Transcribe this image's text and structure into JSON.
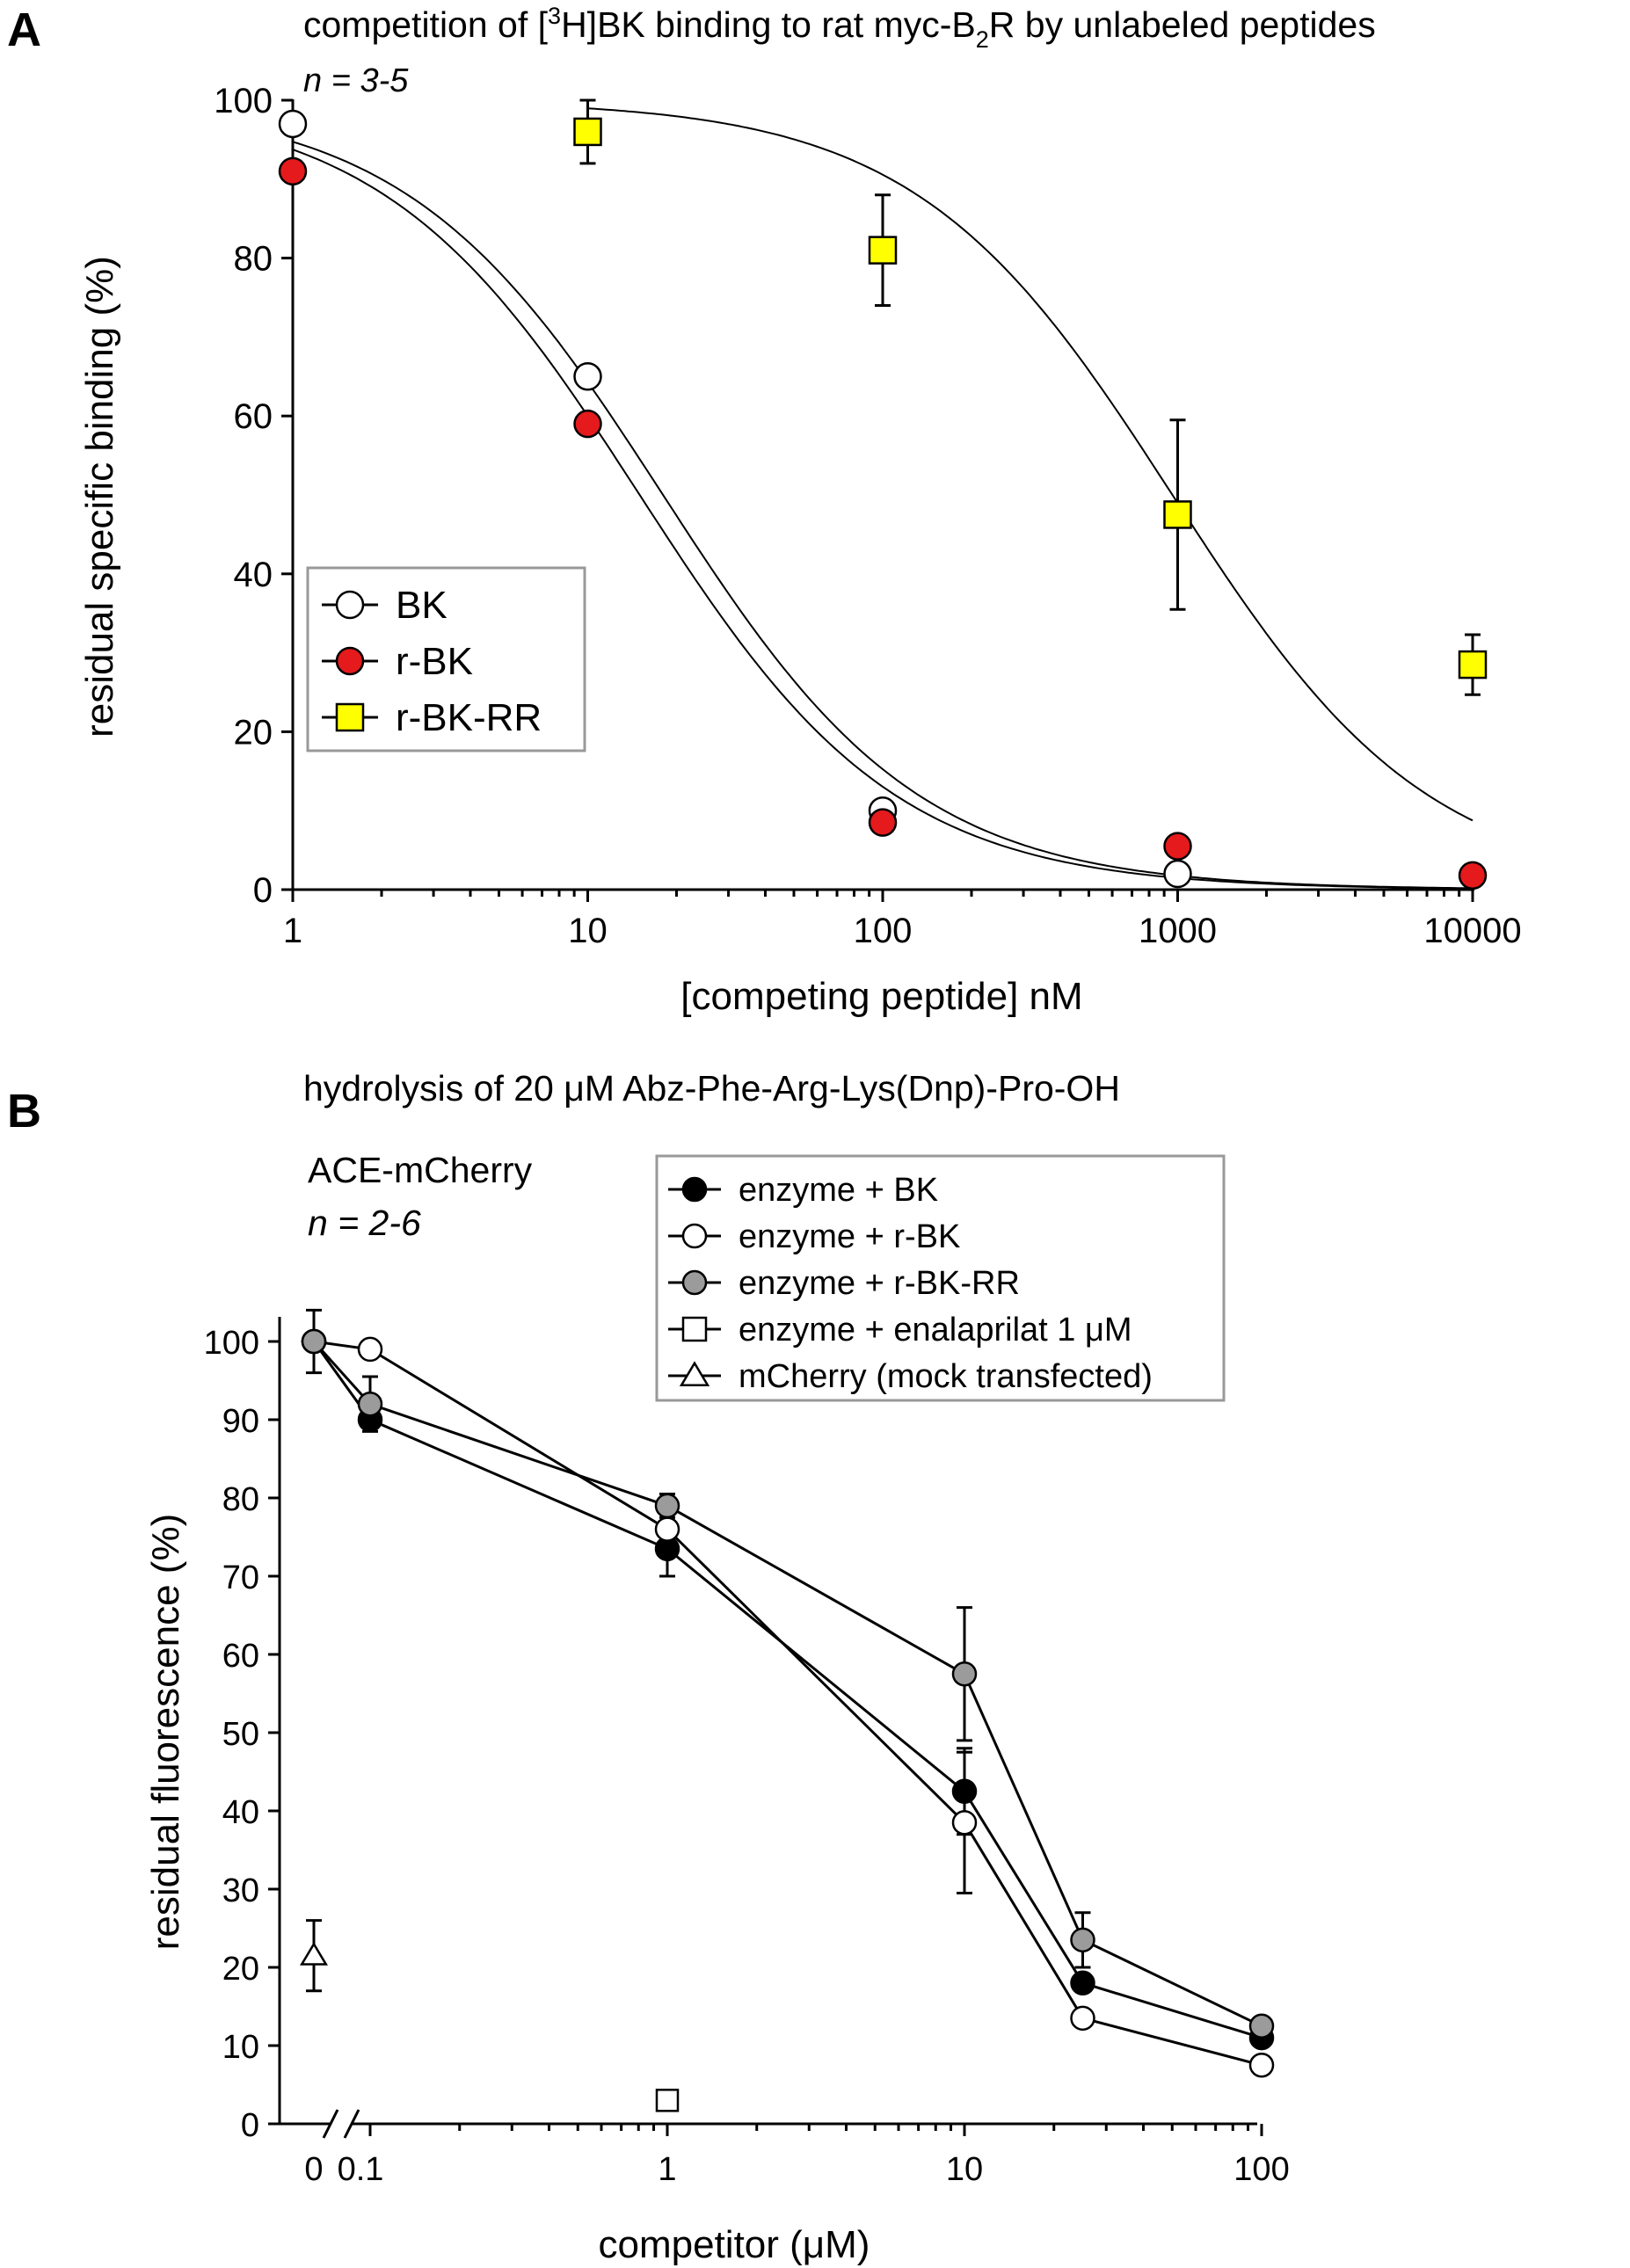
{
  "panel_labels": {
    "a": "A",
    "b": "B"
  },
  "colors": {
    "open": "#ffffff",
    "red": "#e41a1c",
    "yellow": "#ffff00",
    "black": "#000000",
    "gray": "#9b9b9b",
    "legend_border": "#999999"
  },
  "chart_data": [
    {
      "panel": "A",
      "type": "scatter",
      "title_pre": "competition of [",
      "title_sup": "3",
      "title_mid": "H]BK binding to rat myc-B",
      "title_sub": "2",
      "title_post": "R by unlabeled peptides",
      "annotation": "n = 3-5",
      "xlabel": "[competing peptide]  nM",
      "ylabel": "residual specific binding (%)",
      "xscale": "log",
      "xlim": [
        1,
        10000
      ],
      "ylim": [
        0,
        100
      ],
      "xticks": [
        "1",
        "10",
        "100",
        "1000",
        "10000"
      ],
      "yticks": [
        "0",
        "20",
        "40",
        "60",
        "80",
        "100"
      ],
      "legend_position": "mid-left",
      "series": [
        {
          "name": "BK",
          "marker": "circle",
          "fill": "#ffffff",
          "x": [
            1,
            10,
            100,
            1000
          ],
          "y": [
            97,
            65,
            10,
            2
          ],
          "err": [
            0,
            0,
            0,
            0
          ],
          "fit": {
            "top": 100,
            "bottom": 0,
            "ic50": 18,
            "hill": 1
          }
        },
        {
          "name": "r-BK",
          "marker": "circle",
          "fill": "#e41a1c",
          "x": [
            1,
            10,
            100,
            1000,
            10000
          ],
          "y": [
            91,
            59,
            8.5,
            5.5,
            1.8
          ],
          "err": [
            0,
            0,
            0,
            0,
            0
          ],
          "fit": {
            "top": 100,
            "bottom": 0,
            "ic50": 15,
            "hill": 1
          }
        },
        {
          "name": "r-BK-RR",
          "marker": "square",
          "fill": "#ffff00",
          "x": [
            10,
            100,
            1000,
            10000
          ],
          "y": [
            96,
            81,
            47.5,
            28.5
          ],
          "err": [
            4,
            7,
            12,
            3.8
          ],
          "fit": {
            "top": 100,
            "bottom": 0,
            "ic50": 960,
            "hill": 1,
            "xmin": 10
          }
        }
      ]
    },
    {
      "panel": "B",
      "type": "line",
      "title": "hydrolysis of 20 μM Abz-Phe-Arg-Lys(Dnp)-Pro-OH",
      "annotation_line1": "ACE-mCherry",
      "annotation_line2": "n = 2-6",
      "xlabel": "competitor (μM)",
      "ylabel": "residual fluorescence (%)",
      "xscale": "log with break",
      "xlim": [
        0.1,
        100
      ],
      "ylim": [
        0,
        100
      ],
      "xticks": [
        "0",
        "0.1",
        "1",
        "10",
        "100"
      ],
      "yticks": [
        "0",
        "10",
        "20",
        "30",
        "40",
        "50",
        "60",
        "70",
        "80",
        "90",
        "100"
      ],
      "legend_position": "top-right",
      "series": [
        {
          "name": "enzyme + BK",
          "marker": "circle",
          "fill": "#000000",
          "x": [
            0,
            0.1,
            1,
            10,
            25,
            100
          ],
          "y": [
            100,
            90,
            73.5,
            42.5,
            18,
            11
          ],
          "err": [
            0,
            0,
            3.5,
            5.5,
            0,
            0
          ]
        },
        {
          "name": "enzyme + r-BK",
          "marker": "circle",
          "fill": "#ffffff",
          "x": [
            0,
            0.1,
            1,
            10,
            25,
            100
          ],
          "y": [
            100,
            99,
            76,
            38.5,
            13.5,
            7.5
          ],
          "err": [
            0,
            0,
            0,
            9,
            0,
            0
          ]
        },
        {
          "name": "enzyme + r-BK-RR",
          "marker": "circle",
          "fill": "#9b9b9b",
          "x": [
            0,
            0.1,
            1,
            10,
            25,
            100
          ],
          "y": [
            100,
            92,
            79,
            57.5,
            23.5,
            12.5
          ],
          "err": [
            4,
            3.5,
            1.5,
            8.5,
            3.5,
            0
          ]
        },
        {
          "name": "enzyme + enalaprilat 1 μM",
          "marker": "square",
          "fill": "#ffffff",
          "x": [
            1
          ],
          "y": [
            3
          ],
          "err": [
            0
          ]
        },
        {
          "name": "mCherry (mock transfected)",
          "marker": "triangle",
          "fill": "#ffffff",
          "x": [
            0
          ],
          "y": [
            21.5
          ],
          "err": [
            4.5
          ]
        }
      ]
    }
  ]
}
